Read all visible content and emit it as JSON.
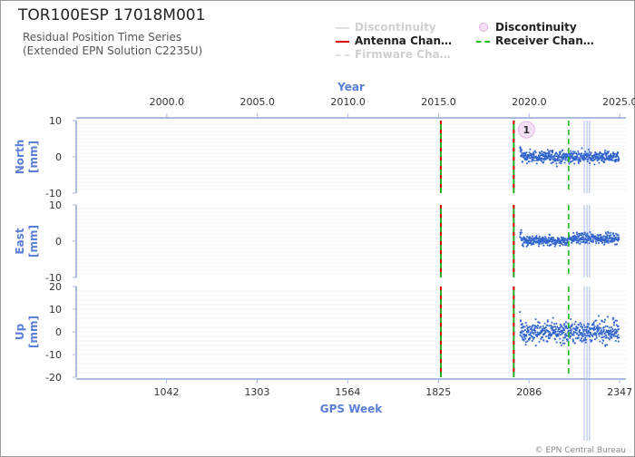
{
  "header": {
    "title": "TOR100ESP 17018M001",
    "subtitle_line1": "Residual Position Time Series",
    "subtitle_line2": "(Extended EPN Solution C2235U)"
  },
  "legend": {
    "items": [
      {
        "label": "Discontinuity",
        "style": "line",
        "color": "#d8d8d8",
        "dashed": false,
        "faded": true
      },
      {
        "label": "Discontinuity",
        "style": "dot",
        "color": "#efc4ee",
        "dashed": false,
        "faded": false
      },
      {
        "label": "Antenna Chan…",
        "style": "line",
        "color": "#e00000",
        "dashed": false,
        "faded": false
      },
      {
        "label": "Receiver Chan…",
        "style": "line",
        "color": "#22bb22",
        "dashed": true,
        "faded": false
      },
      {
        "label": "Firmware Cha…",
        "style": "line",
        "color": "#d8d8d8",
        "dashed": true,
        "faded": true
      }
    ]
  },
  "footer": {
    "credit": "© EPN Central Bureau"
  },
  "colors": {
    "points": "#3366cc",
    "axis": "#aabbdd",
    "axis_title": "#5b7fd6",
    "grid": "#e4e4e4"
  },
  "chart_data": {
    "type": "scatter",
    "top_axis": {
      "label": "Year",
      "ticks": [
        "2000.0",
        "2005.0",
        "2010.0",
        "2015.0",
        "2020.0",
        "2025.0"
      ],
      "tick_values": [
        2000.0,
        2005.0,
        2010.0,
        2015.0,
        2020.0,
        2025.0
      ]
    },
    "bottom_axis": {
      "label": "GPS Week",
      "ticks": [
        "1042",
        "1303",
        "1564",
        "1825",
        "2086",
        "2347"
      ],
      "tick_values": [
        1042,
        1303,
        1564,
        1825,
        2086,
        2347
      ],
      "range": [
        782,
        2365
      ]
    },
    "panels": [
      {
        "name": "North",
        "ylabel_line1": "North",
        "ylabel_line2": "[mm]",
        "ylim": [
          -10,
          10
        ],
        "yticks": [
          10,
          0,
          -10
        ],
        "ytick_labels": [
          "10",
          "0",
          "-10"
        ],
        "noise_amplitude": 1.2
      },
      {
        "name": "East",
        "ylabel_line1": "East",
        "ylabel_line2": "[mm]",
        "ylim": [
          -10,
          10
        ],
        "yticks": [
          10,
          0,
          -10
        ],
        "ytick_labels": [
          "10",
          "0",
          "-10"
        ],
        "noise_amplitude": 1.0
      },
      {
        "name": "Up",
        "ylabel_line1": "Up",
        "ylabel_line2": "[mm]",
        "ylim": [
          -20,
          20
        ],
        "yticks": [
          20,
          10,
          0,
          -10,
          -20
        ],
        "ytick_labels": [
          "20",
          "10",
          "0",
          "-10",
          "-20"
        ],
        "noise_amplitude": 3.5
      }
    ],
    "data_range_gps_week": [
      2060,
      2345
    ],
    "antenna_changes_gps_week": [
      1832,
      2042
    ],
    "receiver_changes_gps_week": [
      2200
    ],
    "discontinuity_markers": [
      {
        "gps_week": 2063,
        "label": "1",
        "panel": "North"
      }
    ],
    "outlier_spikes_gps_week": [
      2245,
      2253,
      2260
    ]
  }
}
